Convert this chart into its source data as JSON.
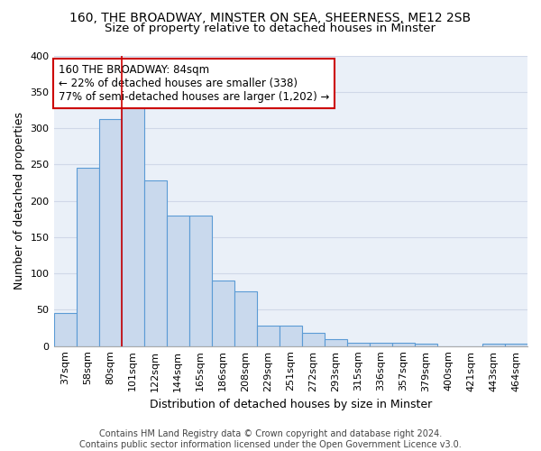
{
  "title_line1": "160, THE BROADWAY, MINSTER ON SEA, SHEERNESS, ME12 2SB",
  "title_line2": "Size of property relative to detached houses in Minster",
  "xlabel": "Distribution of detached houses by size in Minster",
  "ylabel": "Number of detached properties",
  "categories": [
    "37sqm",
    "58sqm",
    "80sqm",
    "101sqm",
    "122sqm",
    "144sqm",
    "165sqm",
    "186sqm",
    "208sqm",
    "229sqm",
    "251sqm",
    "272sqm",
    "293sqm",
    "315sqm",
    "336sqm",
    "357sqm",
    "379sqm",
    "400sqm",
    "421sqm",
    "443sqm",
    "464sqm"
  ],
  "values": [
    45,
    245,
    312,
    335,
    228,
    180,
    180,
    90,
    75,
    28,
    28,
    18,
    10,
    4,
    5,
    4,
    3,
    0,
    0,
    3,
    3
  ],
  "bar_color": "#c9d9ed",
  "bar_edge_color": "#5b9bd5",
  "vline_x": 2.5,
  "vline_color": "#cc0000",
  "annotation_text": "160 THE BROADWAY: 84sqm\n← 22% of detached houses are smaller (338)\n77% of semi-detached houses are larger (1,202) →",
  "annotation_box_color": "#ffffff",
  "annotation_box_edge_color": "#cc0000",
  "ylim": [
    0,
    400
  ],
  "yticks": [
    0,
    50,
    100,
    150,
    200,
    250,
    300,
    350,
    400
  ],
  "grid_color": "#d0d8e8",
  "bg_color": "#eaf0f8",
  "footnote": "Contains HM Land Registry data © Crown copyright and database right 2024.\nContains public sector information licensed under the Open Government Licence v3.0.",
  "title_fontsize": 10,
  "subtitle_fontsize": 9.5,
  "xlabel_fontsize": 9,
  "ylabel_fontsize": 9,
  "tick_fontsize": 8,
  "annot_fontsize": 8.5,
  "footnote_fontsize": 7
}
